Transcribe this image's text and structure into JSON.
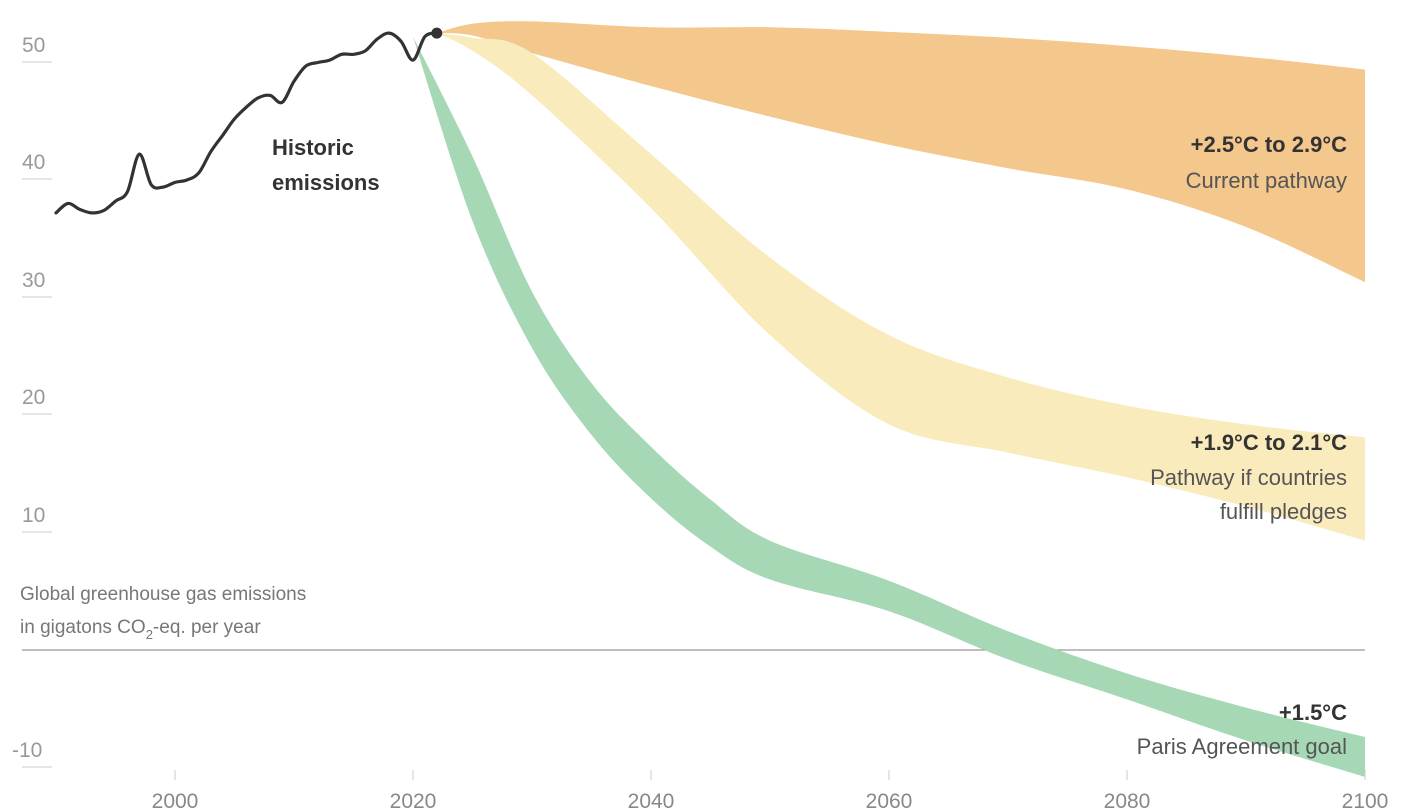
{
  "chart_data": {
    "type": "area",
    "xlim": [
      1990,
      2100
    ],
    "ylim": [
      -10,
      50
    ],
    "x_ticks": [
      "2000",
      "2020",
      "2040",
      "2060",
      "2080",
      "2100"
    ],
    "y_ticks": [
      "50",
      "40",
      "30",
      "20",
      "10",
      "-10"
    ],
    "unit_label_line1": "Global greenhouse gas emissions",
    "unit_label_line2_prefix": "in gigatons CO",
    "unit_label_line2_sub": "2",
    "unit_label_line2_suffix": "-eq. per year",
    "historic": {
      "label_line1": "Historic",
      "label_line2": "emissions",
      "color": "#333333",
      "x": [
        1990,
        1991,
        1992,
        1993,
        1994,
        1995,
        1996,
        1997,
        1998,
        1999,
        2000,
        2001,
        2002,
        2003,
        2004,
        2005,
        2006,
        2007,
        2008,
        2009,
        2010,
        2011,
        2012,
        2013,
        2014,
        2015,
        2016,
        2017,
        2018,
        2019,
        2020,
        2021,
        2022
      ],
      "y": [
        37.2,
        38.0,
        37.5,
        37.2,
        37.4,
        38.2,
        39.0,
        42.2,
        39.6,
        39.4,
        39.8,
        40.0,
        40.6,
        42.4,
        43.8,
        45.2,
        46.2,
        47.0,
        47.2,
        46.6,
        48.4,
        49.7,
        50.0,
        50.2,
        50.7,
        50.7,
        51.0,
        52.0,
        52.5,
        51.8,
        50.2,
        52.2,
        52.5
      ]
    },
    "bands": [
      {
        "name": "Current pathway",
        "temp_label": "+2.5°C to 2.9°C",
        "color": "#f4c78c",
        "x": [
          2022,
          2025,
          2030,
          2040,
          2050,
          2060,
          2070,
          2080,
          2090,
          2100
        ],
        "upper": [
          52.5,
          53.3,
          53.5,
          53.0,
          53.0,
          52.6,
          52.1,
          51.4,
          50.5,
          49.4
        ],
        "lower": [
          52.5,
          52.3,
          50.8,
          48.0,
          45.4,
          43.0,
          41.0,
          39.2,
          36.0,
          31.3
        ]
      },
      {
        "name": "Pathway if countries fulfill pledges",
        "name_line1": "Pathway if countries",
        "name_line2": "fulfill pledges",
        "temp_label": "+1.9°C to 2.1°C",
        "color": "#faebbd",
        "x": [
          2022,
          2025,
          2030,
          2040,
          2050,
          2060,
          2070,
          2080,
          2090,
          2100
        ],
        "upper": [
          52.5,
          52.1,
          50.8,
          42.2,
          33.4,
          26.8,
          23.2,
          20.8,
          19.2,
          18.1
        ],
        "lower": [
          52.5,
          51.0,
          47.2,
          37.6,
          26.8,
          19.2,
          16.8,
          14.7,
          12.2,
          9.3
        ]
      },
      {
        "name": "Paris Agreement goal",
        "temp_label": "+1.5°C",
        "color": "#a6d8b5",
        "x": [
          2020,
          2025,
          2030,
          2035,
          2040,
          2045,
          2050,
          2060,
          2070,
          2080,
          2090,
          2100
        ],
        "upper": [
          52.2,
          42.0,
          30.5,
          22.7,
          17.3,
          12.8,
          9.3,
          5.9,
          1.6,
          -2.0,
          -4.9,
          -7.4
        ],
        "lower": [
          52.2,
          36.5,
          25.7,
          18.3,
          12.9,
          8.8,
          6.0,
          3.3,
          -0.8,
          -4.2,
          -7.7,
          -10.8
        ]
      }
    ]
  }
}
